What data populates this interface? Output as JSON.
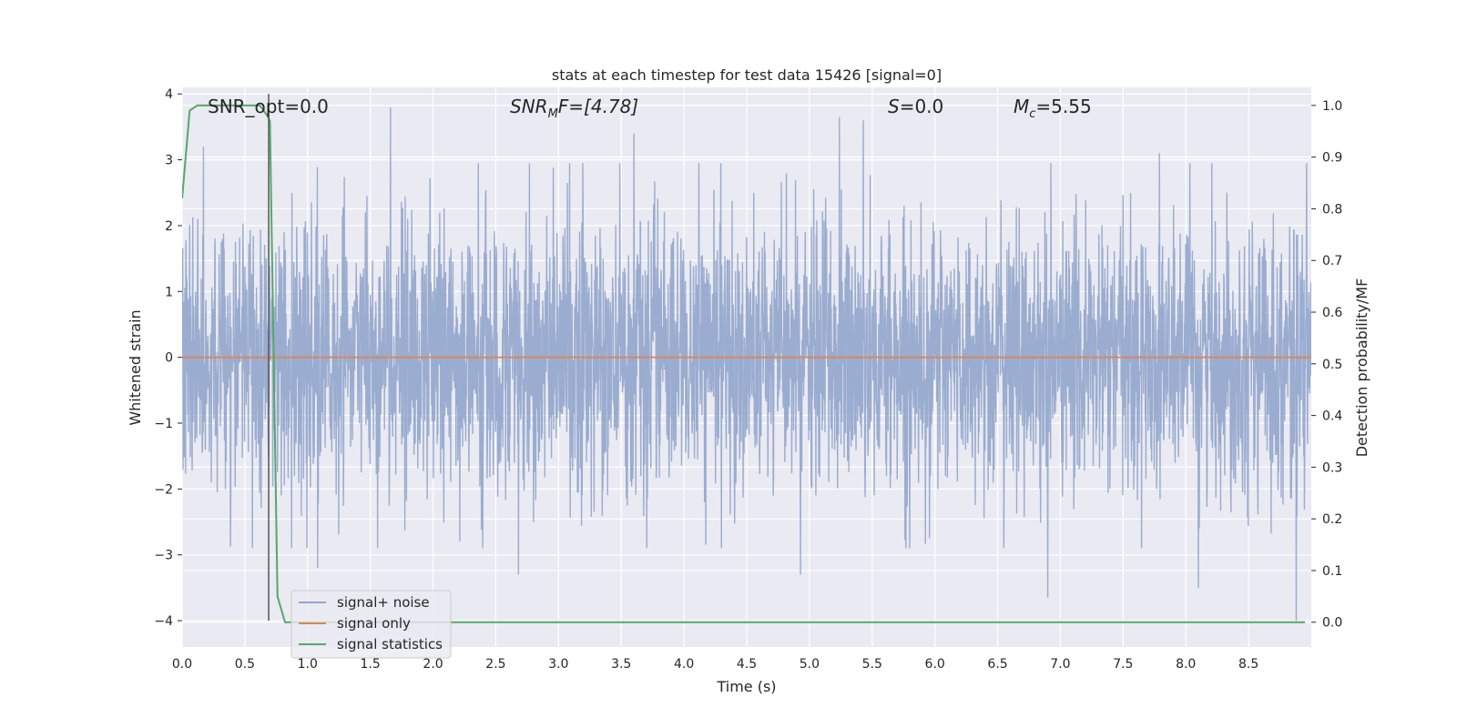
{
  "chart_data": {
    "type": "line",
    "title": "stats at each timestep for test data 15426 [signal=0]",
    "xlabel": "Time (s)",
    "ylabel": "Whitened strain",
    "y2label": "Detection probability/MF",
    "xlim": [
      0,
      9.0
    ],
    "ylim": [
      -4.4,
      4.1
    ],
    "y2lim": [
      -0.048,
      1.035
    ],
    "grid": true,
    "legend_position": "lower-left",
    "x_ticks": [
      "0.0",
      "0.5",
      "1.0",
      "1.5",
      "2.0",
      "2.5",
      "3.0",
      "3.5",
      "4.0",
      "4.5",
      "5.0",
      "5.5",
      "6.0",
      "6.5",
      "7.0",
      "7.5",
      "8.0",
      "8.5"
    ],
    "x_tick_values": [
      0,
      0.5,
      1,
      1.5,
      2,
      2.5,
      3,
      3.5,
      4,
      4.5,
      5,
      5.5,
      6,
      6.5,
      7,
      7.5,
      8,
      8.5
    ],
    "y_ticks": [
      "4",
      "3",
      "2",
      "1",
      "0",
      "−1",
      "−2",
      "−3",
      "−4"
    ],
    "y_tick_values": [
      4,
      3,
      2,
      1,
      0,
      -1,
      -2,
      -3,
      -4
    ],
    "y2_ticks": [
      "1.0",
      "0.9",
      "0.8",
      "0.7",
      "0.6",
      "0.5",
      "0.4",
      "0.3",
      "0.2",
      "0.1",
      "0.0"
    ],
    "y2_tick_values": [
      1.0,
      0.9,
      0.8,
      0.7,
      0.6,
      0.5,
      0.4,
      0.3,
      0.2,
      0.1,
      0.0
    ],
    "annotations": {
      "snr_opt": "SNR_opt=0.0",
      "snr_mf_main": "SNR",
      "snr_mf_sub": "M",
      "snr_mf_rest": "F=[4.78]",
      "s_main": "S",
      "s_rest": "=0.0",
      "mc_main": "M",
      "mc_sub": "c",
      "mc_rest": "=5.55"
    },
    "vline_x": 0.69,
    "series": [
      {
        "name": "signal+ noise",
        "color": "#92a6cc",
        "axis": "left",
        "description": "whitened strain noise, roughly gaussian, range about -4 to 3.8",
        "peaks": [
          [
            0.17,
            3.2
          ],
          [
            1.66,
            3.8
          ],
          [
            3.6,
            3.4
          ],
          [
            5.24,
            3.65
          ],
          [
            5.43,
            3.6
          ],
          [
            7.79,
            3.1
          ],
          [
            0.56,
            -2.9
          ],
          [
            1.08,
            -3.2
          ],
          [
            2.68,
            -3.3
          ],
          [
            4.93,
            -3.3
          ],
          [
            6.9,
            -3.65
          ],
          [
            8.1,
            -3.5
          ],
          [
            8.88,
            -4.0
          ]
        ]
      },
      {
        "name": "signal only",
        "color": "#dd8452",
        "axis": "left",
        "x": [
          0,
          9.0
        ],
        "y": [
          0,
          0
        ]
      },
      {
        "name": "signal statistics",
        "color": "#55a868",
        "axis": "right",
        "x": [
          0,
          0.06,
          0.12,
          0.3,
          0.5,
          0.62,
          0.68,
          0.7,
          0.76,
          0.82,
          1.5,
          3.0,
          6.0,
          8.5,
          8.95
        ],
        "y": [
          0.82,
          0.99,
          1.0,
          1.0,
          1.0,
          1.0,
          0.98,
          0.97,
          0.05,
          0.0,
          0.0,
          0.0,
          0.0,
          0.0,
          0.0
        ]
      }
    ]
  }
}
